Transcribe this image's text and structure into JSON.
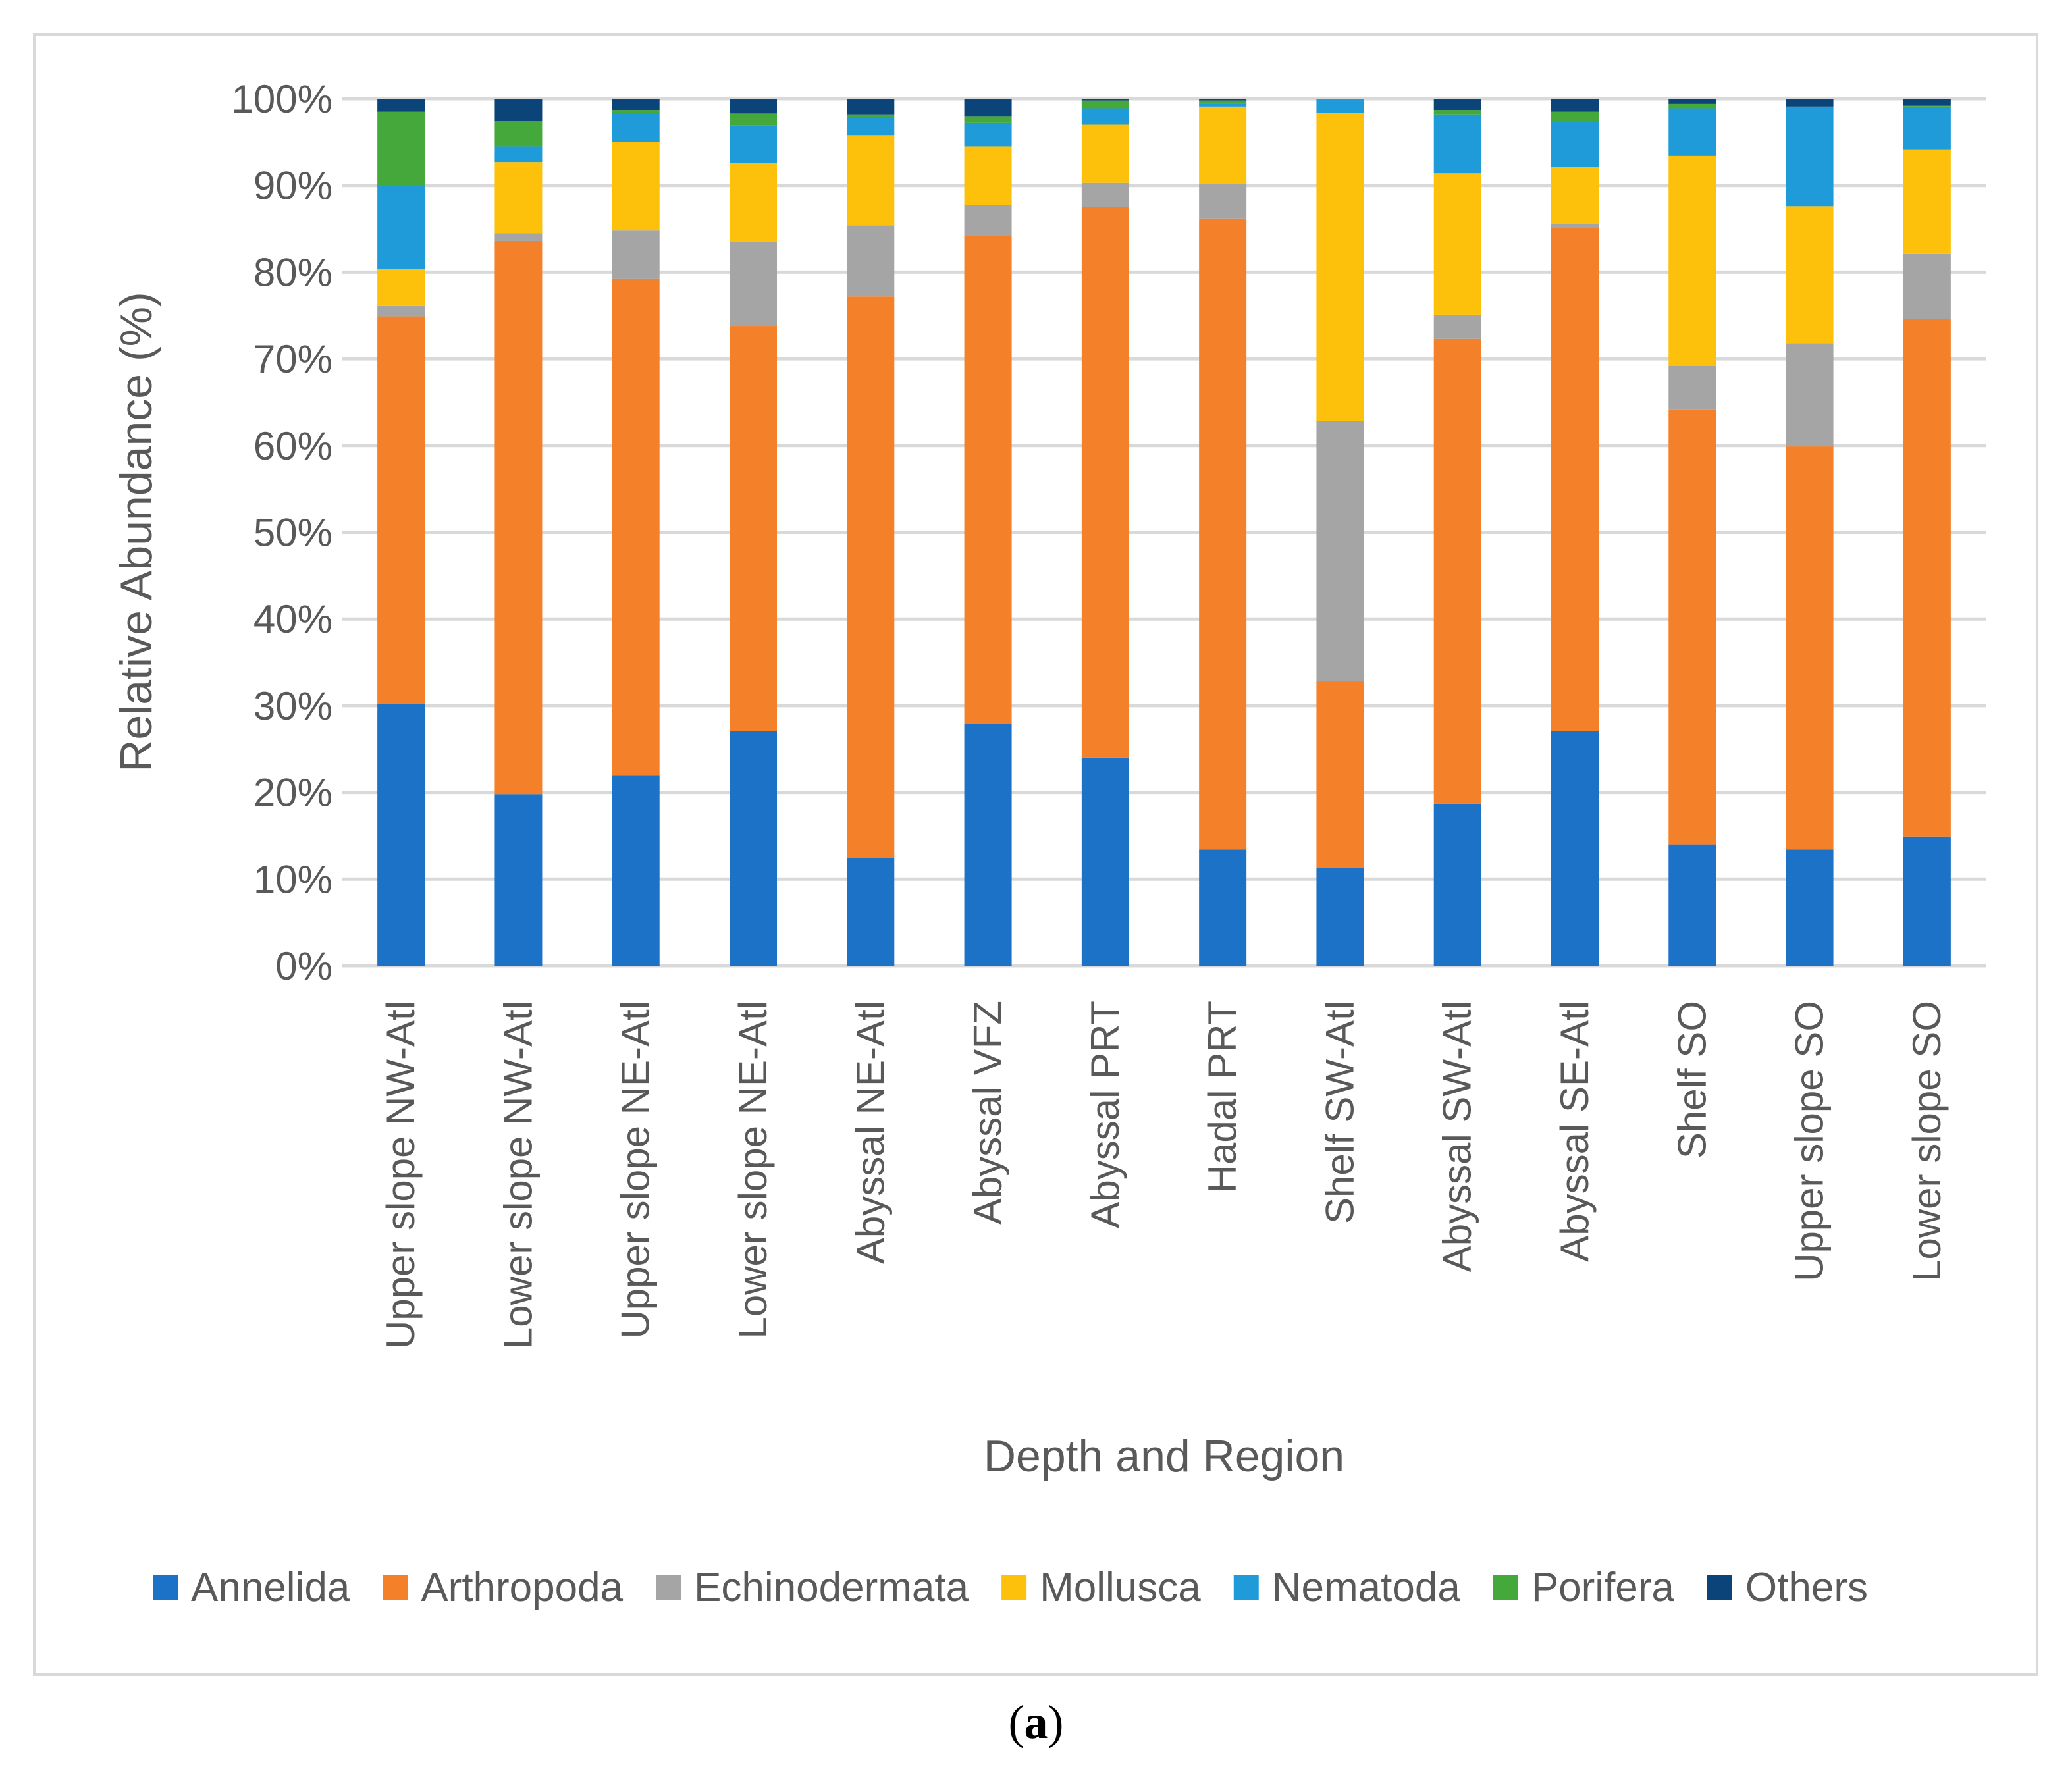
{
  "chart_data": {
    "type": "bar",
    "stacked": true,
    "title": "",
    "xlabel": "Depth and Region",
    "ylabel": "Relative Abundance (%)",
    "ylim": [
      0,
      100
    ],
    "yticks": [
      "0%",
      "10%",
      "20%",
      "30%",
      "40%",
      "50%",
      "60%",
      "70%",
      "80%",
      "90%",
      "100%"
    ],
    "grid": true,
    "legend_position": "bottom",
    "categories": [
      "Upper slope NW-Atl",
      "Lower slope NW-Atl",
      "Upper slope NE-Atl",
      "Lower slope NE-Atl",
      "Abyssal NE-Atl",
      "Abyssal VFZ",
      "Abyssal PRT",
      "Hadal PRT",
      "Shelf SW-Atl",
      "Abyssal SW-Atl",
      "Abyssal SE-Atl",
      "Shelf SO",
      "Upper slope SO",
      "Lower slope SO"
    ],
    "series": [
      {
        "name": "Annelida",
        "color": "#1b72c7",
        "values": [
          30.2,
          19.8,
          22.0,
          27.1,
          12.4,
          27.9,
          24.0,
          13.4,
          11.3,
          18.7,
          27.1,
          14.0,
          13.4,
          14.9
        ]
      },
      {
        "name": "Arthropoda",
        "color": "#f5802a",
        "values": [
          44.7,
          63.8,
          57.2,
          46.7,
          64.8,
          56.3,
          63.5,
          72.8,
          21.5,
          53.6,
          58.0,
          50.1,
          46.5,
          59.7
        ]
      },
      {
        "name": "Echinodermata",
        "color": "#a5a5a5",
        "values": [
          1.2,
          0.9,
          5.6,
          9.7,
          8.2,
          3.5,
          2.8,
          4.0,
          30.0,
          2.8,
          0.4,
          5.1,
          11.9,
          7.5
        ]
      },
      {
        "name": "Mollusca",
        "color": "#fec10b",
        "values": [
          4.3,
          8.2,
          10.2,
          9.1,
          10.4,
          6.8,
          6.7,
          8.9,
          35.6,
          16.3,
          6.6,
          24.2,
          15.8,
          12.0
        ]
      },
      {
        "name": "Nematoda",
        "color": "#1f9bd9",
        "values": [
          9.5,
          1.8,
          3.4,
          4.3,
          2.1,
          2.7,
          1.9,
          0.3,
          1.6,
          6.8,
          5.2,
          5.5,
          11.5,
          5.0
        ]
      },
      {
        "name": "Porifera",
        "color": "#44a83b",
        "values": [
          8.6,
          2.9,
          0.3,
          1.4,
          0.3,
          0.8,
          0.9,
          0.4,
          0,
          0.5,
          1.2,
          0.5,
          0,
          0.1
        ]
      },
      {
        "name": "Others",
        "color": "#0b4478",
        "values": [
          1.5,
          2.6,
          1.3,
          1.7,
          1.8,
          2.0,
          0.2,
          0.2,
          0,
          1.3,
          1.5,
          0.6,
          0.9,
          0.8
        ]
      }
    ]
  },
  "figure_label": "a"
}
